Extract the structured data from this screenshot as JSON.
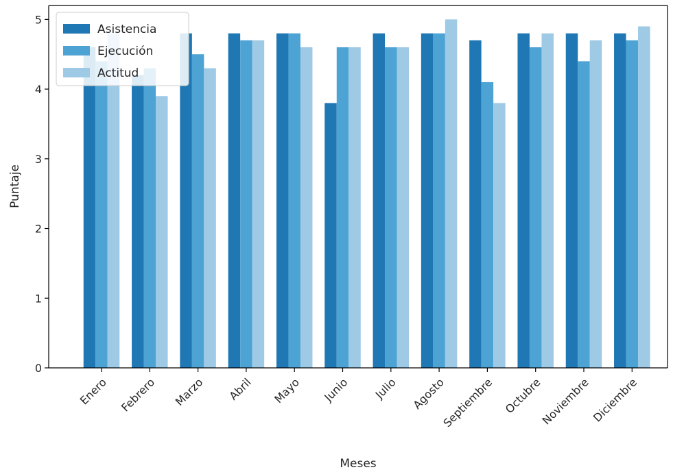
{
  "chart_data": {
    "type": "bar",
    "title": "",
    "xlabel": "Meses",
    "ylabel": "Puntaje",
    "ylim": [
      0,
      5.2
    ],
    "yticks": [
      0,
      1,
      2,
      3,
      4,
      5
    ],
    "grid": false,
    "legend_position": "top-left",
    "categories": [
      "Enero",
      "Febrero",
      "Marzo",
      "Abril",
      "Mayo",
      "Junio",
      "Julio",
      "Agosto",
      "Septiembre",
      "Octubre",
      "Noviembre",
      "Diciembre"
    ],
    "series": [
      {
        "name": "Asistencia",
        "color": "#1f77b4",
        "values": [
          4.6,
          4.2,
          4.8,
          4.8,
          4.8,
          3.8,
          4.8,
          4.8,
          4.7,
          4.8,
          4.8,
          4.8
        ]
      },
      {
        "name": "Ejecución",
        "color": "#4da3d4",
        "values": [
          4.4,
          4.3,
          4.5,
          4.7,
          4.8,
          4.6,
          4.6,
          4.8,
          4.1,
          4.6,
          4.4,
          4.7
        ]
      },
      {
        "name": "Actitud",
        "color": "#9ecae6",
        "values": [
          4.8,
          3.9,
          4.3,
          4.7,
          4.6,
          4.6,
          4.6,
          5.0,
          3.8,
          4.8,
          4.7,
          4.9
        ]
      }
    ]
  }
}
